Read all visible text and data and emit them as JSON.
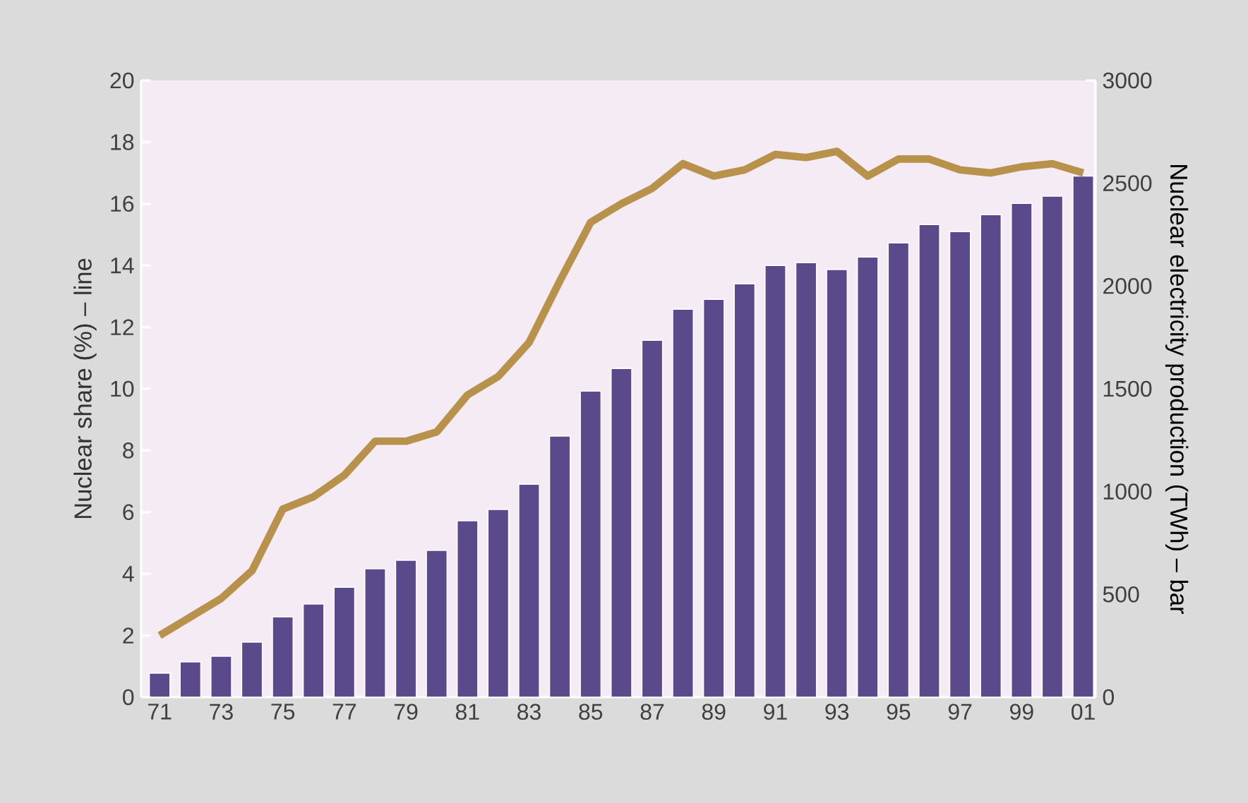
{
  "chart_data": {
    "type": "bar",
    "categories": [
      "71",
      null,
      "73",
      null,
      "75",
      null,
      "77",
      null,
      "79",
      null,
      "81",
      null,
      "83",
      null,
      "85",
      null,
      "87",
      null,
      "89",
      null,
      "91",
      null,
      "93",
      null,
      "95",
      null,
      "97",
      null,
      "99",
      null,
      "01"
    ],
    "series": [
      {
        "axis": "y2",
        "color": "#5a4a8c",
        "values": [
          117,
          172,
          199,
          268,
          391,
          453,
          535,
          625,
          666,
          714,
          858,
          913,
          1036,
          1270,
          1489,
          1599,
          1736,
          1887,
          1935,
          2011,
          2100,
          2114,
          2080,
          2141,
          2210,
          2299,
          2265,
          2347,
          2402,
          2437,
          2535
        ]
      },
      {
        "type": "line",
        "color": "#b8924a",
        "values": [
          2.0,
          2.6,
          3.2,
          4.1,
          6.1,
          6.5,
          7.2,
          8.3,
          8.3,
          8.6,
          9.8,
          10.4,
          11.5,
          13.5,
          15.4,
          16.0,
          16.5,
          17.3,
          16.9,
          17.1,
          17.6,
          17.5,
          17.7,
          16.9,
          17.45,
          17.45,
          17.1,
          17.0,
          17.2,
          17.3,
          17.0
        ]
      }
    ],
    "ylim": [
      0,
      20
    ],
    "yticks": [
      0,
      2,
      4,
      6,
      8,
      10,
      12,
      14,
      16,
      18,
      20
    ],
    "y2lim": [
      0,
      3000
    ],
    "y2ticks": [
      0,
      500,
      1000,
      1500,
      2000,
      2500,
      3000
    ],
    "ylabel": "Nuclear share (%) – line",
    "y2label": "Nuclear electricity production (TWh) – bar",
    "grid": false
  }
}
